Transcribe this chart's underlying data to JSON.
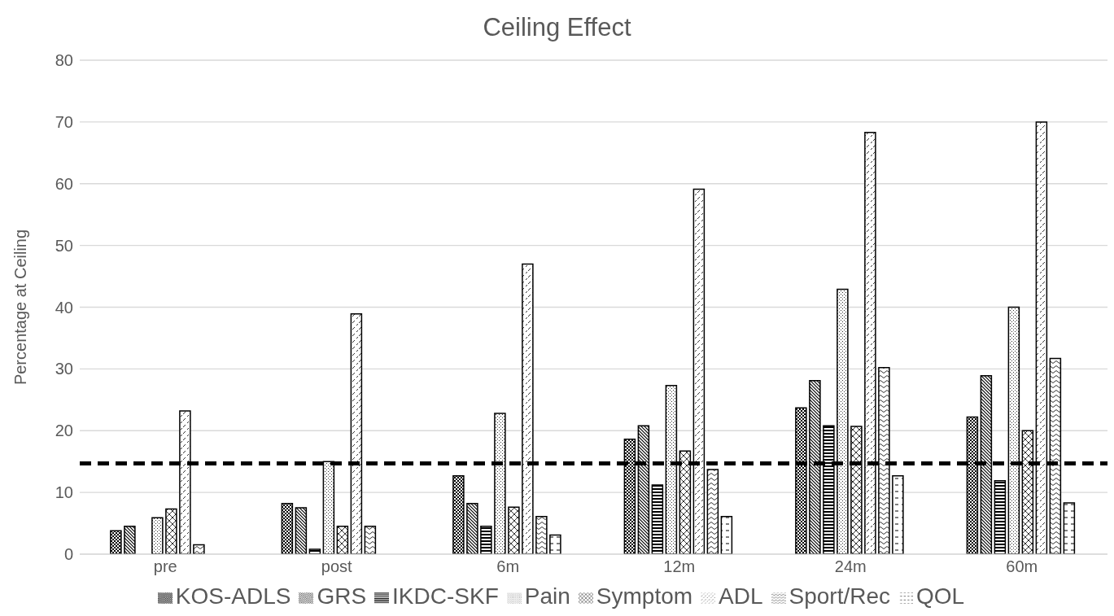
{
  "chart_data": {
    "type": "bar",
    "title": "Ceiling Effect",
    "ylabel": "Percentage at Ceiling",
    "categories": [
      "pre",
      "post",
      "6m",
      "12m",
      "24m",
      "60m"
    ],
    "series": [
      {
        "name": "KOS-ADLS",
        "color": "#000000",
        "values": [
          3.8,
          8.2,
          12.7,
          18.6,
          23.7,
          22.2
        ]
      },
      {
        "name": "GRS",
        "color": "#000000",
        "values": [
          4.5,
          7.5,
          8.2,
          20.8,
          28.1,
          28.9
        ]
      },
      {
        "name": "IKDC-SKF",
        "color": "#000000",
        "values": [
          0,
          0.8,
          4.5,
          11.2,
          20.8,
          11.9
        ]
      },
      {
        "name": "Pain",
        "color": "#000000",
        "values": [
          5.9,
          15.0,
          22.8,
          27.3,
          42.9,
          40.0
        ]
      },
      {
        "name": "Symptom",
        "color": "#000000",
        "values": [
          7.3,
          4.5,
          7.6,
          16.7,
          20.7,
          20.0
        ]
      },
      {
        "name": "ADL",
        "color": "#000000",
        "values": [
          23.2,
          38.9,
          47.0,
          59.1,
          68.3,
          70.0
        ]
      },
      {
        "name": "Sport/Rec",
        "color": "#000000",
        "values": [
          1.5,
          4.5,
          6.1,
          13.7,
          30.2,
          31.7
        ]
      },
      {
        "name": "QOL",
        "color": "#000000",
        "values": [
          0,
          0,
          3.1,
          6.1,
          12.7,
          8.3
        ]
      }
    ],
    "ylim": [
      0,
      80
    ],
    "yticks": [
      0,
      10,
      20,
      30,
      40,
      50,
      60,
      70,
      80
    ],
    "grid": "y",
    "legend": "bottom",
    "ref_lines": [
      {
        "axis": "y",
        "value": 14.7,
        "color": "#000000",
        "line_style": "dashed"
      }
    ]
  }
}
